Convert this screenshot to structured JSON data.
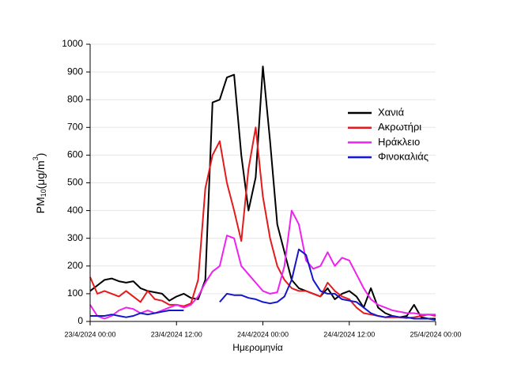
{
  "chart_data": {
    "type": "line",
    "xlabel": "Ημερομηνία",
    "ylabel": {
      "base": "PM",
      "sub": "10",
      "mid": "(μg/m",
      "sup": "3",
      "end": ")"
    },
    "x": [
      "23/4/2024 00:00",
      "23/4/2024 01:00",
      "23/4/2024 02:00",
      "23/4/2024 03:00",
      "23/4/2024 04:00",
      "23/4/2024 05:00",
      "23/4/2024 06:00",
      "23/4/2024 07:00",
      "23/4/2024 08:00",
      "23/4/2024 09:00",
      "23/4/2024 10:00",
      "23/4/2024 11:00",
      "23/4/2024 12:00",
      "23/4/2024 13:00",
      "23/4/2024 14:00",
      "23/4/2024 15:00",
      "23/4/2024 16:00",
      "23/4/2024 17:00",
      "23/4/2024 18:00",
      "23/4/2024 19:00",
      "23/4/2024 20:00",
      "23/4/2024 21:00",
      "23/4/2024 22:00",
      "23/4/2024 23:00",
      "24/4/2024 00:00",
      "24/4/2024 01:00",
      "24/4/2024 02:00",
      "24/4/2024 03:00",
      "24/4/2024 04:00",
      "24/4/2024 05:00",
      "24/4/2024 06:00",
      "24/4/2024 07:00",
      "24/4/2024 08:00",
      "24/4/2024 09:00",
      "24/4/2024 10:00",
      "24/4/2024 11:00",
      "24/4/2024 12:00",
      "24/4/2024 13:00",
      "24/4/2024 14:00",
      "24/4/2024 15:00",
      "24/4/2024 16:00",
      "24/4/2024 17:00",
      "24/4/2024 18:00",
      "24/4/2024 19:00",
      "24/4/2024 20:00",
      "24/4/2024 21:00",
      "24/4/2024 22:00",
      "24/4/2024 23:00",
      "25/4/2024 00:00"
    ],
    "series": [
      {
        "name": "Χανιά",
        "color": "#000000",
        "values": [
          110,
          130,
          150,
          155,
          145,
          140,
          145,
          120,
          110,
          105,
          100,
          75,
          90,
          100,
          85,
          80,
          150,
          790,
          800,
          880,
          890,
          600,
          400,
          520,
          920,
          650,
          350,
          250,
          150,
          120,
          110,
          100,
          90,
          120,
          80,
          100,
          110,
          90,
          50,
          120,
          50,
          30,
          20,
          15,
          20,
          60,
          15,
          10,
          10
        ]
      },
      {
        "name": "Ακρωτήρι",
        "color": "#e41a1c",
        "values": [
          160,
          100,
          110,
          100,
          90,
          110,
          90,
          70,
          110,
          80,
          75,
          60,
          60,
          55,
          65,
          150,
          480,
          600,
          650,
          500,
          400,
          290,
          550,
          700,
          450,
          300,
          200,
          150,
          120,
          110,
          110,
          100,
          90,
          140,
          110,
          90,
          80,
          50,
          30,
          25,
          20,
          15,
          15,
          15,
          12,
          15,
          20,
          25,
          20
        ]
      },
      {
        "name": "Ηράκλειο",
        "color": "#ee22ee",
        "values": [
          60,
          20,
          10,
          20,
          40,
          50,
          45,
          30,
          40,
          30,
          40,
          50,
          60,
          50,
          60,
          90,
          140,
          180,
          200,
          310,
          300,
          200,
          170,
          140,
          110,
          100,
          105,
          200,
          400,
          350,
          220,
          190,
          200,
          250,
          200,
          230,
          220,
          170,
          120,
          80,
          60,
          50,
          40,
          35,
          30,
          30,
          25,
          25,
          25
        ]
      },
      {
        "name": "Φινοκαλιάς",
        "color": "#1515cc",
        "values": [
          20,
          20,
          20,
          25,
          20,
          15,
          20,
          30,
          25,
          30,
          35,
          40,
          40,
          40,
          null,
          null,
          null,
          null,
          70,
          100,
          95,
          95,
          85,
          80,
          70,
          65,
          70,
          90,
          150,
          260,
          240,
          150,
          110,
          100,
          100,
          80,
          75,
          70,
          50,
          30,
          20,
          15,
          20,
          15,
          15,
          10,
          10,
          10,
          5
        ]
      }
    ],
    "xlim": [
      "23/4/2024 00:00",
      "25/4/2024 00:00"
    ],
    "xticks": [
      "23/4/2024 00:00",
      "23/4/2024 12:00",
      "24/4/2024 00:00",
      "24/4/2024 12:00",
      "25/4/2024 00:00"
    ],
    "ylim": [
      0,
      1000
    ],
    "yticks": [
      0,
      100,
      200,
      300,
      400,
      500,
      600,
      700,
      800,
      900,
      1000
    ],
    "grid": true,
    "legend": "upper right"
  }
}
